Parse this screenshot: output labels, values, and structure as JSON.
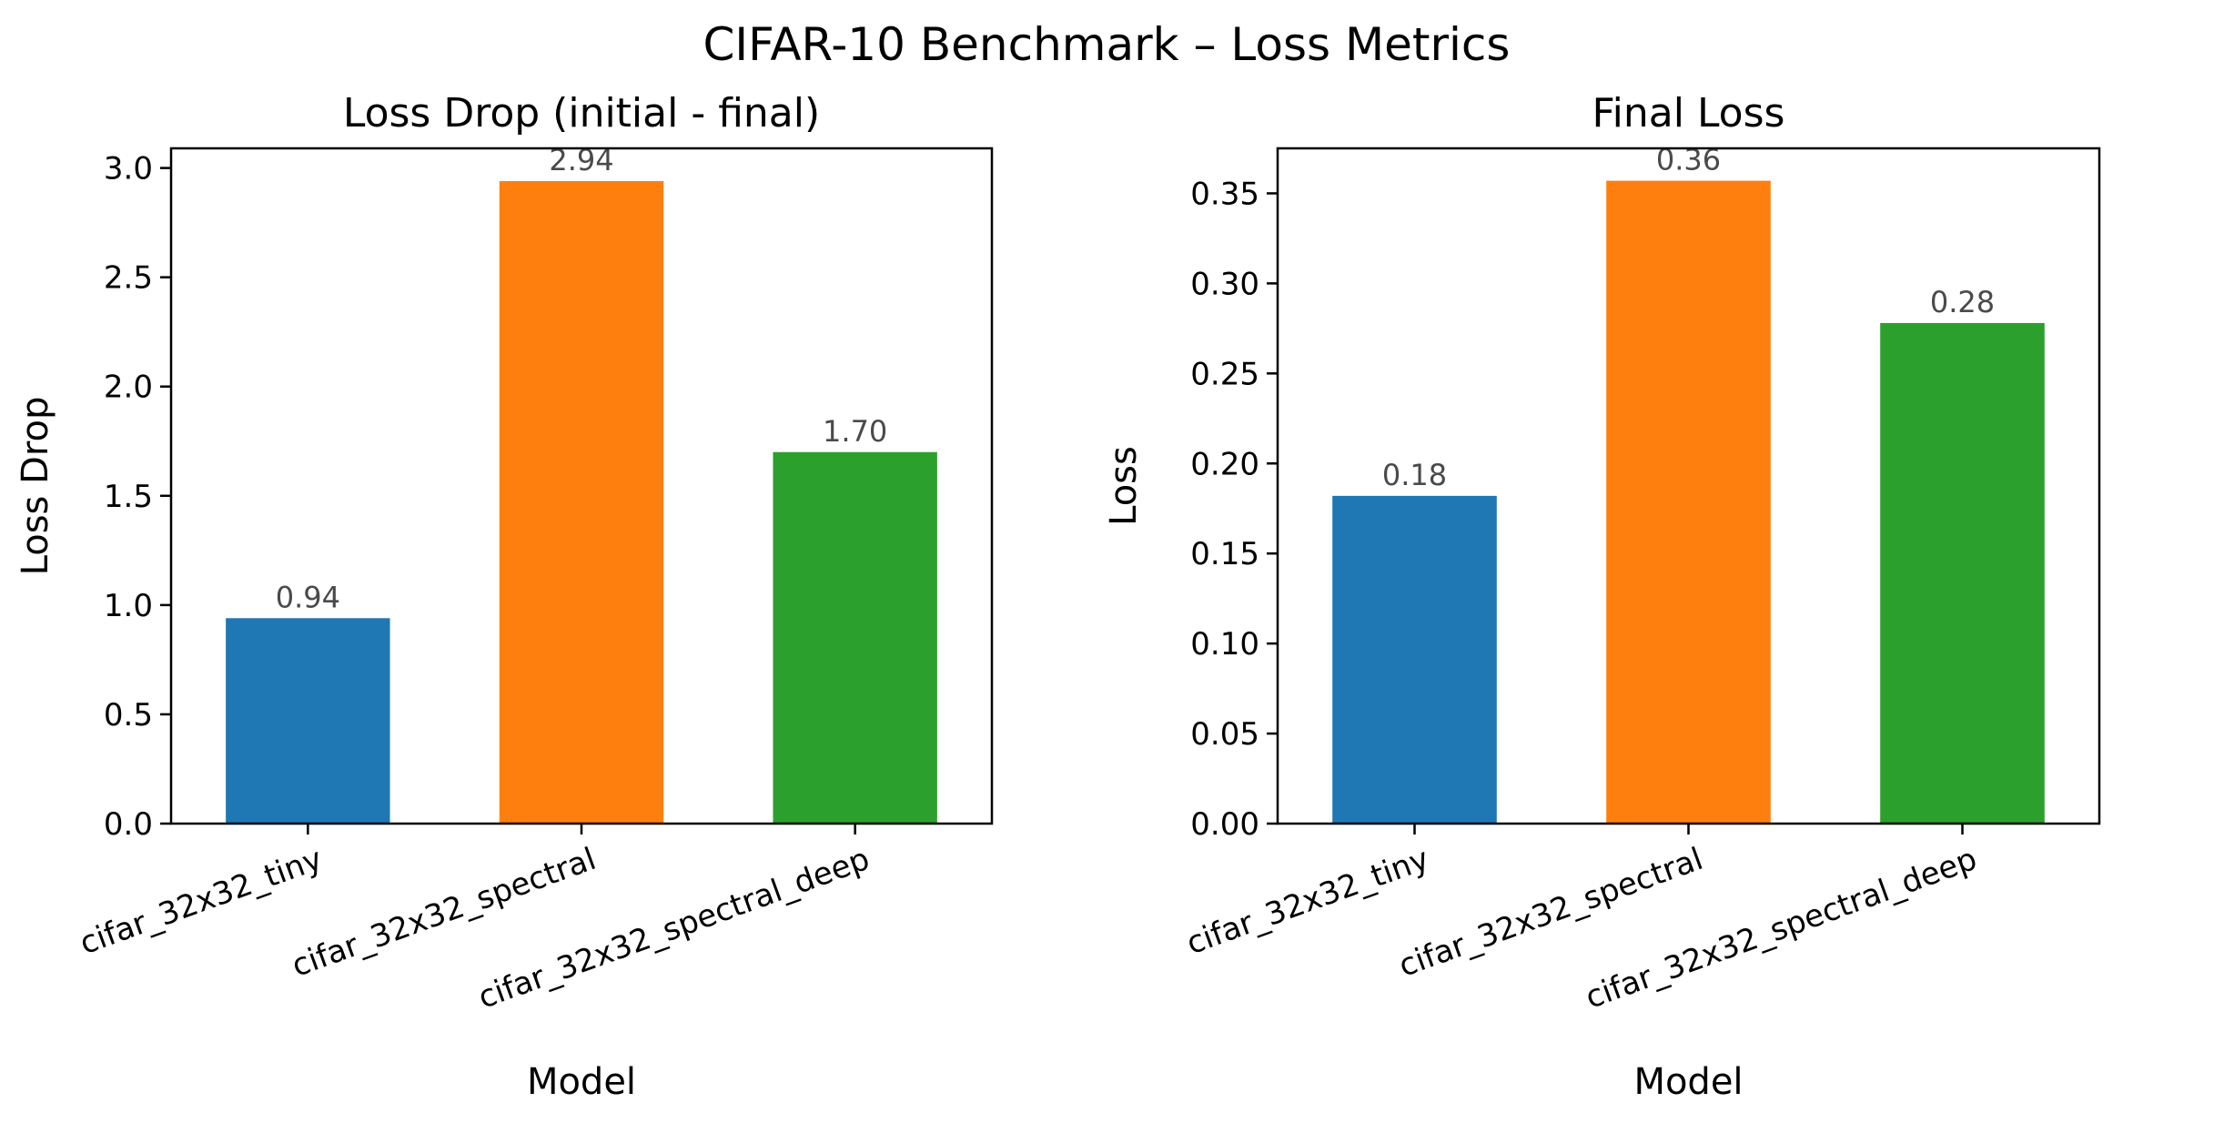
{
  "figure": {
    "title": "CIFAR-10 Benchmark – Loss Metrics"
  },
  "chart_data": [
    {
      "type": "bar",
      "title": "Loss Drop (initial - final)",
      "xlabel": "Model",
      "ylabel": "Loss Drop",
      "categories": [
        "cifar_32x32_tiny",
        "cifar_32x32_spectral",
        "cifar_32x32_spectral_deep"
      ],
      "values": [
        0.94,
        2.94,
        1.7
      ],
      "data_labels": [
        "0.94",
        "2.94",
        "1.70"
      ],
      "colors": [
        "#1f77b4",
        "#ff7f0e",
        "#2ca02c"
      ],
      "ylim": [
        0,
        3.09
      ],
      "yticks": [
        0.0,
        0.5,
        1.0,
        1.5,
        2.0,
        2.5,
        3.0
      ],
      "ytick_labels": [
        "0.0",
        "0.5",
        "1.0",
        "1.5",
        "2.0",
        "2.5",
        "3.0"
      ],
      "grid": false,
      "legend": "none"
    },
    {
      "type": "bar",
      "title": "Final Loss",
      "xlabel": "Model",
      "ylabel": "Loss",
      "categories": [
        "cifar_32x32_tiny",
        "cifar_32x32_spectral",
        "cifar_32x32_spectral_deep"
      ],
      "values": [
        0.182,
        0.357,
        0.278
      ],
      "data_labels": [
        "0.18",
        "0.36",
        "0.28"
      ],
      "colors": [
        "#1f77b4",
        "#ff7f0e",
        "#2ca02c"
      ],
      "ylim": [
        0,
        0.375
      ],
      "yticks": [
        0.0,
        0.05,
        0.1,
        0.15,
        0.2,
        0.25,
        0.3,
        0.35
      ],
      "ytick_labels": [
        "0.00",
        "0.05",
        "0.10",
        "0.15",
        "0.20",
        "0.25",
        "0.30",
        "0.35"
      ],
      "grid": false,
      "legend": "none"
    }
  ]
}
